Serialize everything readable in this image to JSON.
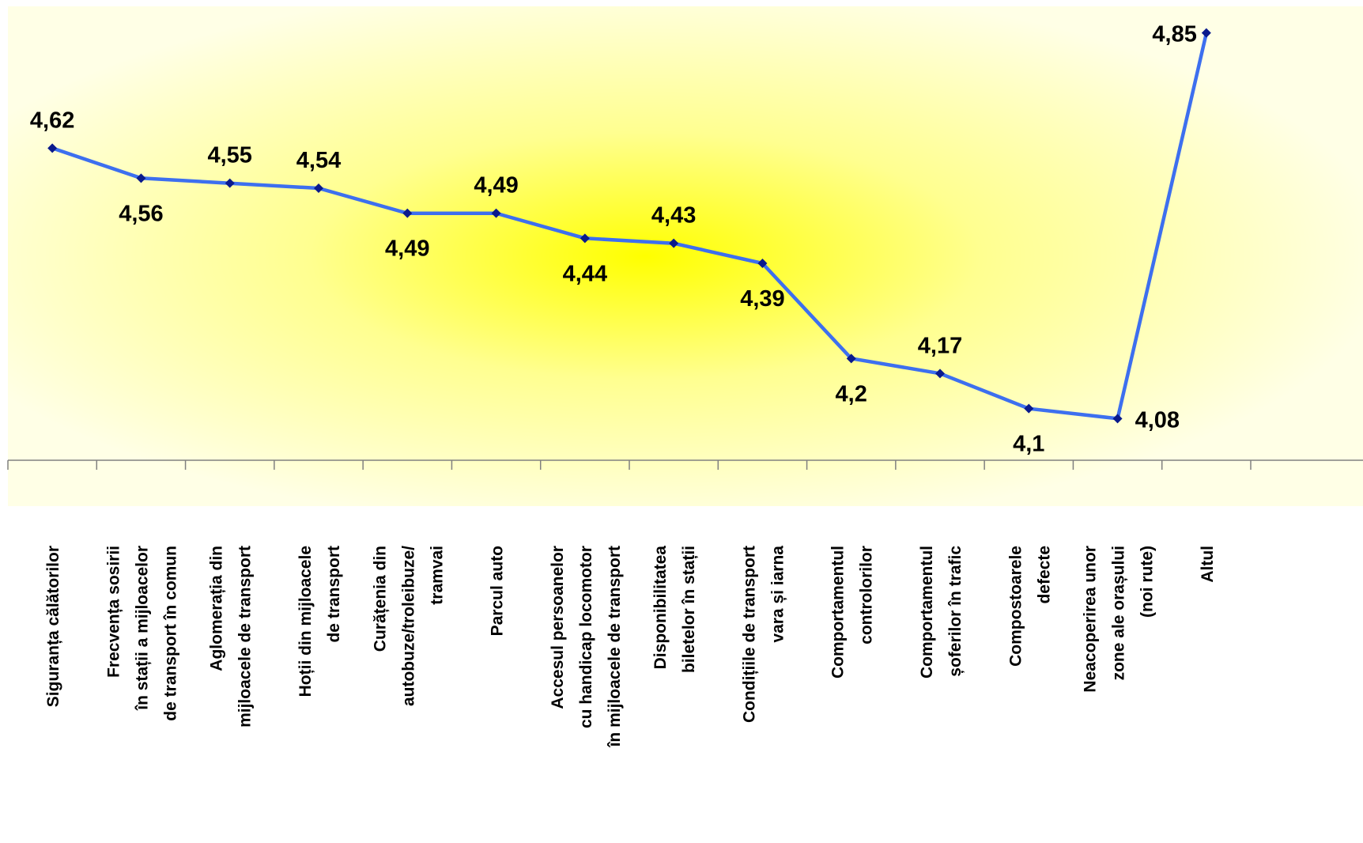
{
  "chart_data": {
    "type": "line",
    "title": "",
    "xlabel": "",
    "ylabel": "",
    "ylim": [
      4.0,
      4.9
    ],
    "grid": false,
    "legend": "none",
    "categories": [
      [
        "Siguranța călătorilor"
      ],
      [
        "Frecvența sosirii",
        "în stații a mijloacelor",
        "de transport în comun"
      ],
      [
        "Aglomerația din",
        "mijloacele de transport"
      ],
      [
        "Hoții din mijloacele",
        "de transport"
      ],
      [
        "Curățenia din",
        "autobuze/troleibuze/",
        "tramvai"
      ],
      [
        "Parcul auto"
      ],
      [
        "Accesul persoanelor",
        "cu handicap locomotor",
        "în mijloacele de transport"
      ],
      [
        "Disponibilitatea",
        "biletelor în stații"
      ],
      [
        "Condițiile de transport",
        "vara și iarna"
      ],
      [
        "Comportamentul",
        "controlorilor"
      ],
      [
        "Comportamentul",
        "șoferilor în trafic"
      ],
      [
        "Compostoarele",
        "defecte"
      ],
      [
        "Neacoperirea unor",
        "zone ale orașului",
        "(noi rute)"
      ],
      [
        "Altul"
      ]
    ],
    "values": [
      4.62,
      4.56,
      4.55,
      4.54,
      4.49,
      4.49,
      4.44,
      4.43,
      4.39,
      4.2,
      4.17,
      4.1,
      4.08,
      4.85
    ],
    "data_labels": [
      "4,62",
      "4,56",
      "4,55",
      "4,54",
      "4,49",
      "4,49",
      "4,44",
      "4,43",
      "4,39",
      "4,2",
      "4,17",
      "4,1",
      "4,08",
      "4,85"
    ],
    "label_positions": [
      "above",
      "below",
      "above",
      "above",
      "below",
      "above",
      "below",
      "above",
      "below",
      "below",
      "above",
      "below",
      "right",
      "left"
    ],
    "colors": {
      "line": "#3d6fef",
      "marker": "#0a1a8c",
      "background_center": "#ffff00",
      "background_edge": "#ffffe6",
      "axis": "#808080"
    }
  }
}
